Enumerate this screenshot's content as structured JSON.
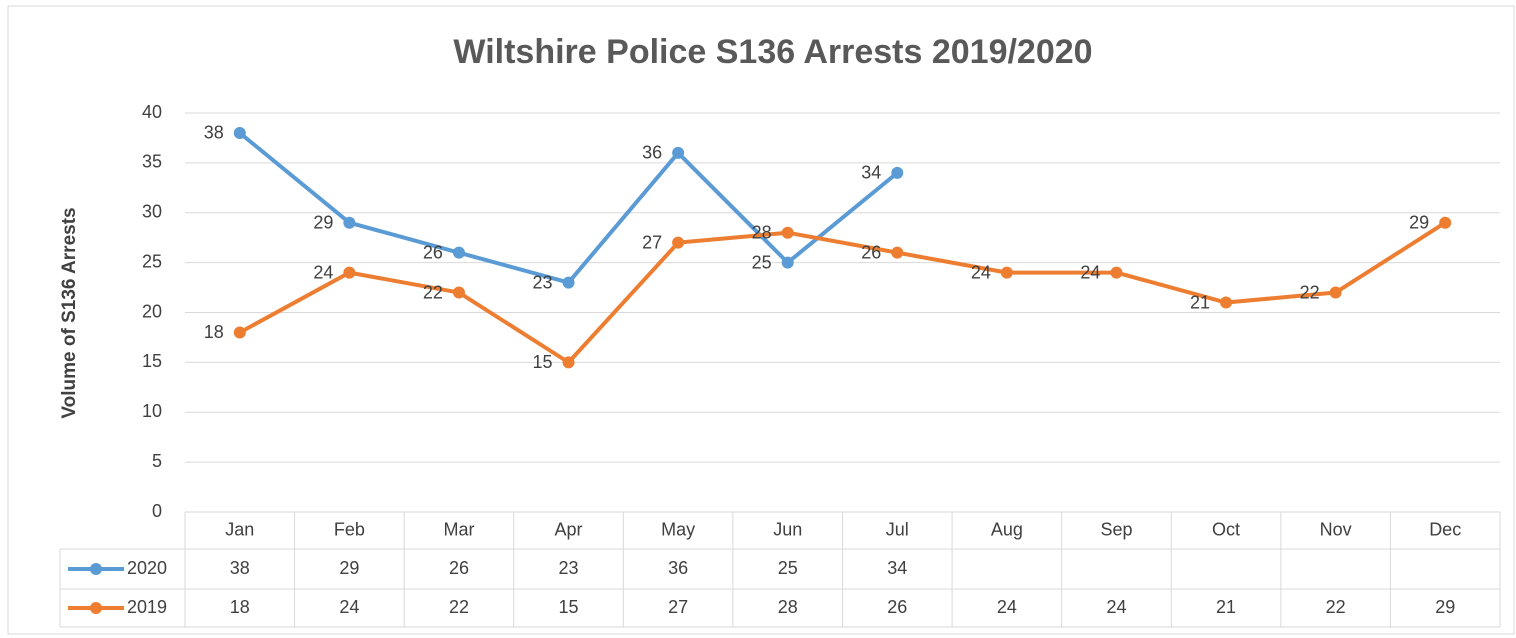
{
  "chart_data": {
    "type": "line",
    "title": "Wiltshire Police S136 Arrests 2019/2020",
    "y_axis_label": "Volume of S136 Arrests",
    "categories": [
      "Jan",
      "Feb",
      "Mar",
      "Apr",
      "May",
      "Jun",
      "Jul",
      "Aug",
      "Sep",
      "Oct",
      "Nov",
      "Dec"
    ],
    "series": [
      {
        "name": "2020",
        "color": "#5b9bd5",
        "values": [
          38,
          29,
          26,
          23,
          36,
          25,
          34,
          null,
          null,
          null,
          null,
          null
        ]
      },
      {
        "name": "2019",
        "color": "#ed7d31",
        "values": [
          18,
          24,
          22,
          15,
          27,
          28,
          26,
          24,
          24,
          21,
          22,
          29
        ]
      }
    ],
    "ylim": [
      0,
      40
    ],
    "yticks": [
      0,
      5,
      10,
      15,
      20,
      25,
      30,
      35,
      40
    ],
    "grid": true,
    "data_table": true
  }
}
